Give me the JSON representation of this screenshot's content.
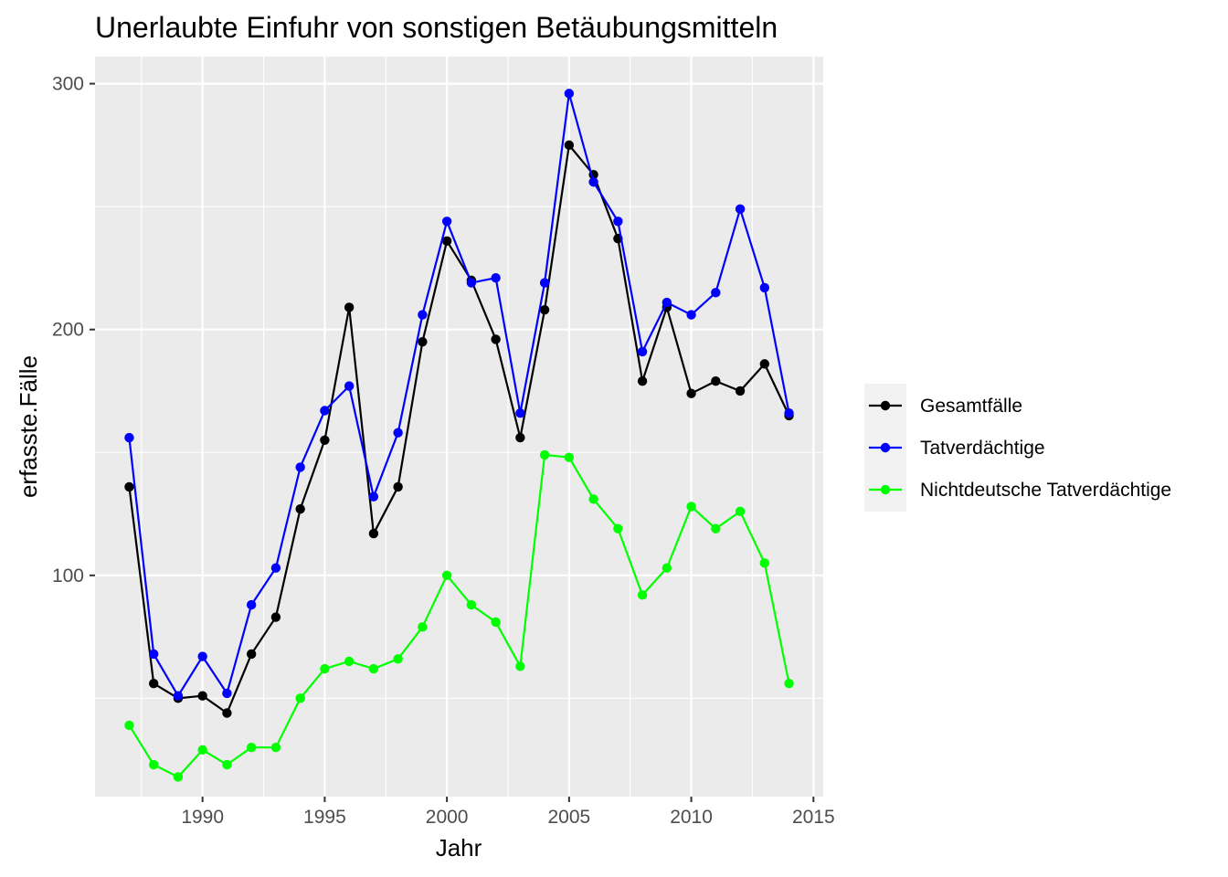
{
  "chart_data": {
    "type": "line",
    "title": "Unerlaubte Einfuhr von sonstigen Betäubungsmitteln",
    "xlabel": "Jahr",
    "ylabel": "erfasste.Fälle",
    "x": [
      1987,
      1988,
      1989,
      1990,
      1991,
      1992,
      1993,
      1994,
      1995,
      1996,
      1997,
      1998,
      1999,
      2000,
      2001,
      2002,
      2003,
      2004,
      2005,
      2006,
      2007,
      2008,
      2009,
      2010,
      2011,
      2012,
      2013,
      2014
    ],
    "xlim": [
      1985.6,
      2015.4
    ],
    "ylim": [
      10,
      311
    ],
    "x_ticks": [
      "1990",
      "1995",
      "2000",
      "2005",
      "2010",
      "2015"
    ],
    "y_ticks": [
      "100",
      "200",
      "300"
    ],
    "grid": true,
    "legend_position": "right",
    "series": [
      {
        "name": "Gesamtfälle",
        "color": "#000000",
        "values": [
          136,
          56,
          50,
          51,
          44,
          68,
          83,
          127,
          155,
          209,
          117,
          136,
          195,
          236,
          220,
          196,
          156,
          208,
          275,
          263,
          237,
          179,
          209,
          174,
          179,
          175,
          186,
          165
        ]
      },
      {
        "name": "Tatverdächtige",
        "color": "#0000ff",
        "values": [
          156,
          68,
          51,
          67,
          52,
          88,
          103,
          144,
          167,
          177,
          132,
          158,
          206,
          244,
          219,
          221,
          166,
          219,
          296,
          260,
          244,
          191,
          211,
          206,
          215,
          249,
          217,
          166
        ]
      },
      {
        "name": "Nichtdeutsche Tatverdächtige",
        "color": "#00ff00",
        "values": [
          39,
          23,
          18,
          29,
          23,
          30,
          30,
          50,
          62,
          65,
          62,
          66,
          79,
          100,
          88,
          81,
          63,
          149,
          148,
          131,
          119,
          92,
          103,
          128,
          119,
          126,
          105,
          56
        ]
      }
    ]
  }
}
